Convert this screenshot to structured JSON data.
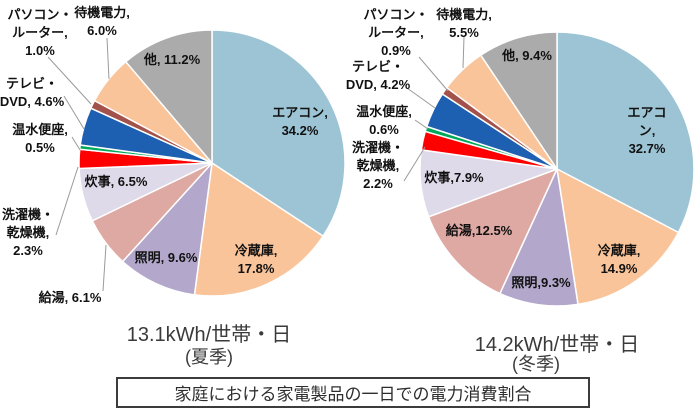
{
  "page_caption": "家庭における家電製品の一日での電力消費割合",
  "chart_data": [
    {
      "type": "pie",
      "title": "13.1kWh/世帯・日",
      "season": "(夏季)",
      "unit": "%",
      "order": "clockwise-from-top",
      "segments": [
        {
          "label": "エアコン",
          "value": 34.2,
          "color": "#9CC4D5",
          "display": "エアコン,\n34.2%"
        },
        {
          "label": "冷蔵庫",
          "value": 17.8,
          "color": "#F9C499",
          "display": "冷蔵庫,\n17.8%"
        },
        {
          "label": "照明",
          "value": 9.6,
          "color": "#B3A8CB",
          "display": "照明, 9.6%"
        },
        {
          "label": "給湯",
          "value": 6.1,
          "color": "#DEA8A3",
          "display": "給湯, 6.1%"
        },
        {
          "label": "炊事",
          "value": 6.5,
          "color": "#DEDAE9",
          "display": "炊事, 6.5%"
        },
        {
          "label": "洗濯機・乾燥機",
          "value": 2.3,
          "color": "#FE0000",
          "display": "洗濯機・\n乾燥機,\n2.3%"
        },
        {
          "label": "温水便座",
          "value": 0.5,
          "color": "#00A85A",
          "display": "温水便座,\n0.5%"
        },
        {
          "label": "テレビ・DVD",
          "value": 4.6,
          "color": "#1D5FB0",
          "display": "テレビ・\nDVD, 4.6%"
        },
        {
          "label": "パソコン・ルーター",
          "value": 1.0,
          "color": "#A3524B",
          "display": "パソコン・\nルーター,\n1.0%"
        },
        {
          "label": "待機電力",
          "value": 6.0,
          "color": "#F9C499",
          "display": "待機電力,\n6.0%"
        },
        {
          "label": "他",
          "value": 11.2,
          "color": "#ABABAB",
          "display": "他, 11.2%"
        }
      ]
    },
    {
      "type": "pie",
      "title": "14.2kWh/世帯・日",
      "season": "(冬季)",
      "unit": "%",
      "order": "clockwise-from-top",
      "segments": [
        {
          "label": "エアコン",
          "value": 32.7,
          "color": "#9CC4D5",
          "display": "エアコン,\n32.7%"
        },
        {
          "label": "冷蔵庫",
          "value": 14.9,
          "color": "#F9C499",
          "display": "冷蔵庫,\n14.9%"
        },
        {
          "label": "照明",
          "value": 9.3,
          "color": "#B3A8CB",
          "display": "照明,9.3%"
        },
        {
          "label": "給湯",
          "value": 12.5,
          "color": "#DEA8A3",
          "display": "給湯,12.5%"
        },
        {
          "label": "炊事",
          "value": 7.9,
          "color": "#DEDAE9",
          "display": "炊事,7.9%"
        },
        {
          "label": "洗濯機・乾燥機",
          "value": 2.2,
          "color": "#FE0000",
          "display": "洗濯機・\n乾燥機,\n2.2%"
        },
        {
          "label": "温水便座",
          "value": 0.6,
          "color": "#00A85A",
          "display": "温水便座,\n0.6%"
        },
        {
          "label": "テレビ・DVD",
          "value": 4.2,
          "color": "#1D5FB0",
          "display": "テレビ・\nDVD, 4.2%"
        },
        {
          "label": "パソコン・ルーター",
          "value": 0.9,
          "color": "#A3524B",
          "display": "パソコン・\nルーター,\n0.9%"
        },
        {
          "label": "待機電力",
          "value": 5.5,
          "color": "#F9C499",
          "display": "待機電力,\n5.5%"
        },
        {
          "label": "他",
          "value": 9.4,
          "color": "#ABABAB",
          "display": "他, 9.4%"
        }
      ]
    }
  ]
}
